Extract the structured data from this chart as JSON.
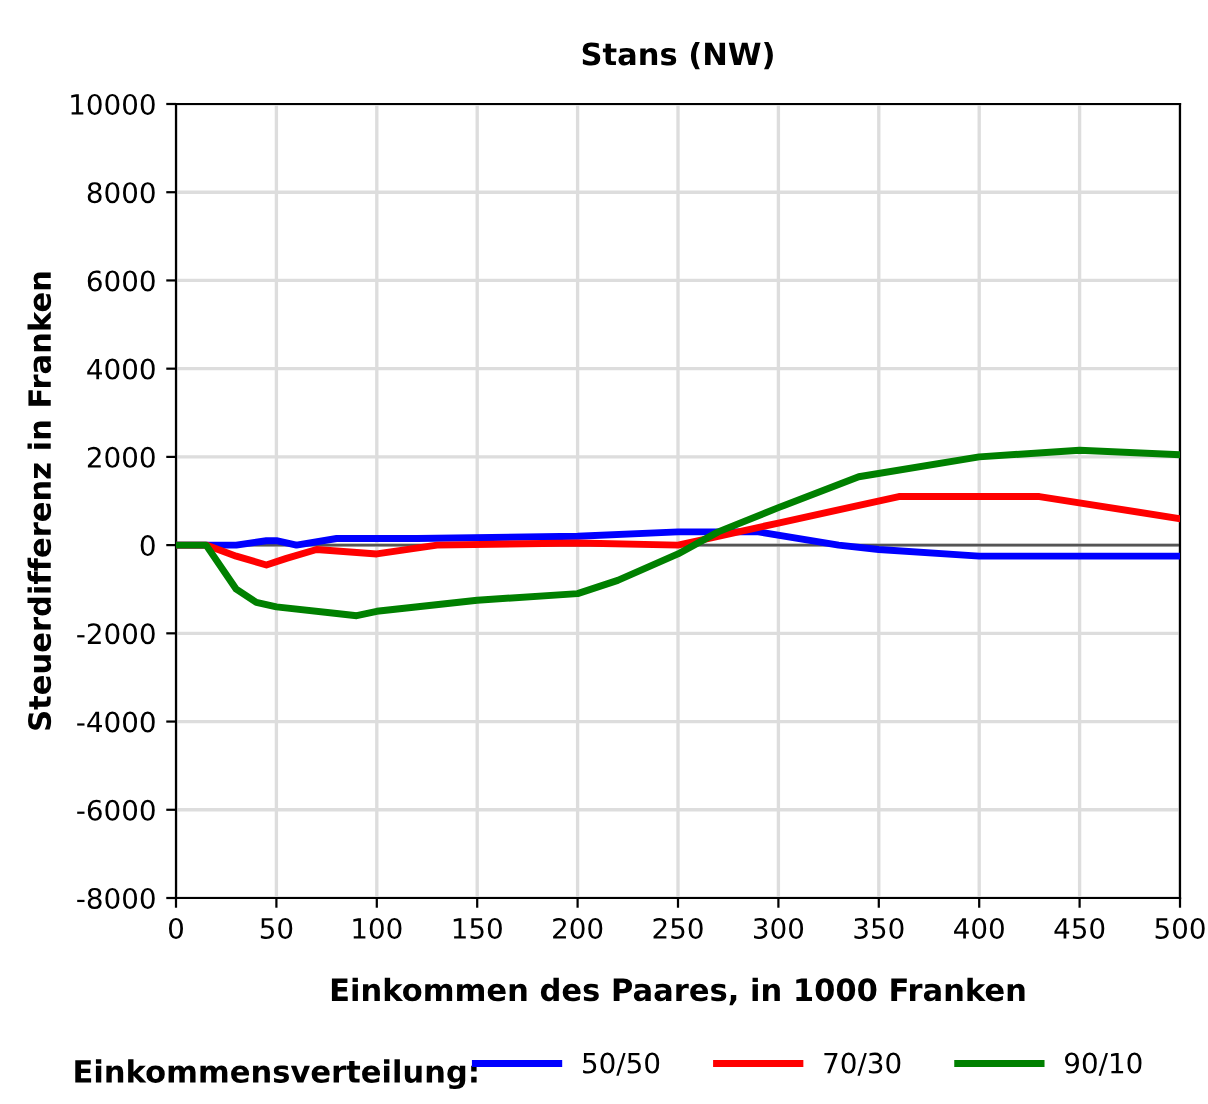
{
  "chart_data": {
    "type": "line",
    "title": "Stans (NW)",
    "xlabel": "Einkommen des Paares, in 1000 Franken",
    "ylabel": "Steuerdifferenz in Franken",
    "legend_title": "Einkommensverteilung:",
    "xlim": [
      0,
      500
    ],
    "xticks": [
      0,
      50,
      100,
      150,
      200,
      250,
      300,
      350,
      400,
      450,
      500
    ],
    "ylim": [
      -8000,
      10000
    ],
    "yticks": [
      -8000,
      -6000,
      -4000,
      -2000,
      0,
      2000,
      4000,
      6000,
      8000,
      10000
    ],
    "grid": true,
    "legend": "bottom",
    "marker": "none",
    "line_style": "solid",
    "ref_lines": [
      {
        "axis": "y",
        "value": 0,
        "color": "#555555"
      }
    ],
    "series": [
      {
        "name": "50/50",
        "color": "#0000ff",
        "x": [
          0,
          30,
          45,
          50,
          60,
          80,
          120,
          200,
          250,
          290,
          330,
          350,
          400,
          500
        ],
        "values": [
          0,
          0,
          100,
          100,
          0,
          150,
          150,
          200,
          300,
          300,
          0,
          -100,
          -250,
          -250
        ]
      },
      {
        "name": "70/30",
        "color": "#ff0000",
        "x": [
          0,
          15,
          30,
          45,
          55,
          70,
          100,
          130,
          200,
          250,
          270,
          300,
          360,
          430,
          500
        ],
        "values": [
          0,
          0,
          -250,
          -450,
          -300,
          -100,
          -200,
          0,
          50,
          0,
          200,
          500,
          1100,
          1100,
          600
        ]
      },
      {
        "name": "90/10",
        "color": "#008000",
        "x": [
          0,
          15,
          30,
          40,
          50,
          80,
          90,
          100,
          150,
          200,
          220,
          250,
          270,
          300,
          340,
          400,
          450,
          500
        ],
        "values": [
          0,
          0,
          -1000,
          -1300,
          -1400,
          -1550,
          -1600,
          -1500,
          -1250,
          -1100,
          -800,
          -200,
          300,
          850,
          1550,
          2000,
          2150,
          2050
        ]
      }
    ]
  }
}
